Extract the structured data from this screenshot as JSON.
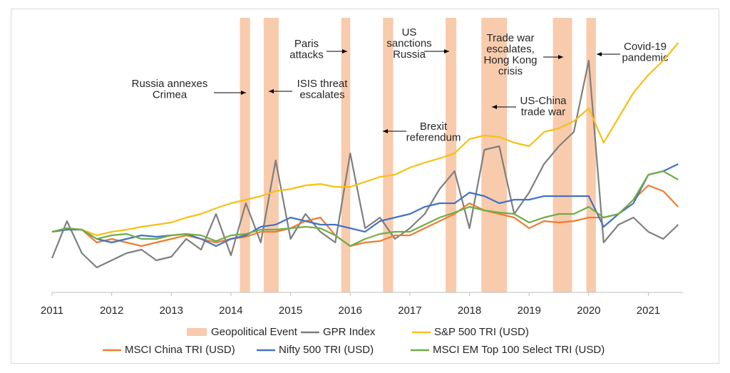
{
  "chart_data": {
    "type": "line",
    "x": [
      2011,
      2011.25,
      2011.5,
      2011.75,
      2012,
      2012.25,
      2012.5,
      2012.75,
      2013,
      2013.25,
      2013.5,
      2013.75,
      2014,
      2014.25,
      2014.5,
      2014.75,
      2015,
      2015.25,
      2015.5,
      2015.75,
      2016,
      2016.25,
      2016.5,
      2016.75,
      2017,
      2017.25,
      2017.5,
      2017.75,
      2018,
      2018.25,
      2018.5,
      2018.75,
      2019,
      2019.25,
      2019.5,
      2019.75,
      2020,
      2020.25,
      2020.5,
      2020.75,
      2021,
      2021.25,
      2021.5
    ],
    "xlim": [
      2011,
      2021.58
    ],
    "xticks": [
      2011,
      2012,
      2013,
      2014,
      2015,
      2016,
      2017,
      2018,
      2019,
      2020,
      2021
    ],
    "ylim": [
      0,
      380
    ],
    "events_label": "Geopolitical Event",
    "events_color": "#f8cbad",
    "events": [
      {
        "start": 2014.15,
        "end": 2014.32
      },
      {
        "start": 2014.55,
        "end": 2014.8
      },
      {
        "start": 2015.85,
        "end": 2016.0
      },
      {
        "start": 2016.55,
        "end": 2016.72
      },
      {
        "start": 2017.6,
        "end": 2017.78
      },
      {
        "start": 2018.2,
        "end": 2018.63
      },
      {
        "start": 2019.4,
        "end": 2019.72
      },
      {
        "start": 2019.96,
        "end": 2020.12
      }
    ],
    "annotations": [
      [
        "Russia annexes",
        "Crimea"
      ],
      [
        "ISIS threat",
        "escalates"
      ],
      [
        "Paris",
        "attacks"
      ],
      [
        "US",
        "sanctions",
        "Russia"
      ],
      [
        "Brexit",
        "referendum"
      ],
      [
        "Trade war",
        "escalates,",
        "Hong Kong",
        "crisis"
      ],
      [
        "US-China",
        "trade war"
      ],
      [
        "Covid-19",
        "pandemic"
      ]
    ],
    "series": [
      {
        "name": "GPR Index",
        "color": "#7f7f7f",
        "values": [
          48,
          100,
          55,
          35,
          45,
          55,
          60,
          45,
          50,
          75,
          60,
          110,
          52,
          125,
          70,
          185,
          75,
          110,
          85,
          70,
          195,
          90,
          105,
          75,
          90,
          110,
          145,
          170,
          90,
          200,
          205,
          110,
          140,
          180,
          205,
          225,
          325,
          70,
          95,
          105,
          85,
          75,
          95
        ]
      },
      {
        "name": "S&P 500 TRI (USD)",
        "color": "#f5c016",
        "values": [
          85,
          88,
          88,
          80,
          85,
          88,
          92,
          95,
          98,
          105,
          110,
          118,
          125,
          130,
          135,
          142,
          145,
          150,
          152,
          148,
          148,
          155,
          162,
          165,
          175,
          182,
          188,
          195,
          215,
          220,
          218,
          210,
          205,
          225,
          230,
          240,
          258,
          210,
          245,
          280,
          305,
          325,
          350
        ]
      },
      {
        "name": "MSCI China TRI (USD)",
        "color": "#ed7d31",
        "values": [
          85,
          90,
          88,
          70,
          75,
          70,
          65,
          70,
          75,
          80,
          75,
          70,
          75,
          78,
          85,
          85,
          90,
          100,
          105,
          80,
          65,
          70,
          72,
          80,
          80,
          90,
          100,
          110,
          125,
          115,
          110,
          105,
          90,
          100,
          98,
          100,
          105,
          105,
          110,
          130,
          150,
          142,
          120
        ]
      },
      {
        "name": "Nifty 500 TRI (USD)",
        "color": "#4472c4",
        "values": [
          85,
          88,
          88,
          75,
          70,
          75,
          80,
          78,
          80,
          82,
          75,
          65,
          75,
          80,
          92,
          95,
          105,
          100,
          95,
          95,
          90,
          85,
          100,
          105,
          110,
          120,
          125,
          125,
          140,
          135,
          125,
          130,
          130,
          135,
          135,
          135,
          135,
          92,
          110,
          125,
          165,
          170,
          180
        ]
      },
      {
        "name": "MSCI EM Top 100 Select TRI (USD)",
        "color": "#70ad47",
        "values": [
          85,
          90,
          88,
          75,
          80,
          82,
          75,
          75,
          80,
          82,
          80,
          72,
          80,
          82,
          88,
          88,
          90,
          92,
          90,
          80,
          65,
          75,
          82,
          85,
          85,
          95,
          105,
          112,
          120,
          115,
          112,
          110,
          98,
          105,
          110,
          110,
          120,
          105,
          110,
          130,
          165,
          170,
          158
        ]
      }
    ]
  }
}
